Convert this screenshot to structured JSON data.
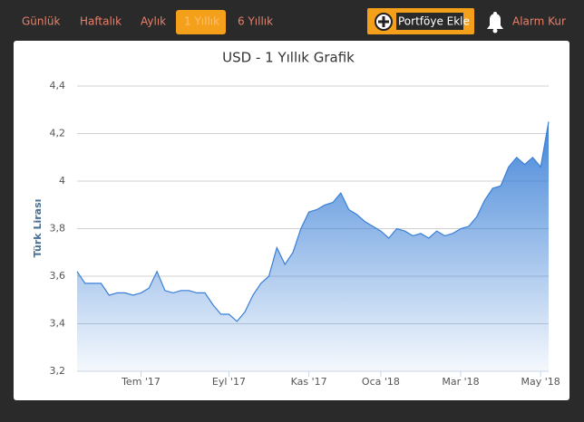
{
  "nav": {
    "tabs": [
      "Günlük",
      "Haftalık",
      "Aylık",
      "1 Yıllık",
      "6 Yıllık"
    ],
    "add_button": "Portföye Ekle",
    "alarm_button": "Alarm Kur"
  },
  "chart_data": {
    "type": "area",
    "title": "USD - 1 Yıllık Grafik",
    "y_label": "Türk Lirası",
    "color": "#3a7fd6",
    "grid": true,
    "categories": [
      null,
      null,
      null,
      null,
      null,
      null,
      null,
      null,
      "Tem '17",
      null,
      null,
      null,
      null,
      null,
      null,
      null,
      null,
      null,
      null,
      "Eyl '17",
      null,
      null,
      null,
      null,
      null,
      null,
      null,
      null,
      null,
      "Kas '17",
      null,
      null,
      null,
      null,
      null,
      null,
      null,
      null,
      "Oca '18",
      null,
      null,
      null,
      null,
      null,
      null,
      null,
      null,
      null,
      "Mar '18",
      null,
      null,
      null,
      null,
      null,
      null,
      null,
      null,
      null,
      "May '18",
      null
    ],
    "values": [
      3.62,
      3.57,
      3.57,
      3.57,
      3.52,
      3.53,
      3.53,
      3.52,
      3.53,
      3.55,
      3.62,
      3.54,
      3.53,
      3.54,
      3.54,
      3.53,
      3.53,
      3.48,
      3.44,
      3.44,
      3.41,
      3.45,
      3.52,
      3.57,
      3.6,
      3.72,
      3.65,
      3.7,
      3.8,
      3.87,
      3.88,
      3.9,
      3.91,
      3.95,
      3.88,
      3.86,
      3.83,
      3.81,
      3.79,
      3.76,
      3.8,
      3.79,
      3.77,
      3.78,
      3.76,
      3.79,
      3.77,
      3.78,
      3.8,
      3.81,
      3.85,
      3.92,
      3.97,
      3.98,
      4.06,
      4.1,
      4.07,
      4.1,
      4.06,
      4.25
    ],
    "ylim": [
      3.2,
      4.4
    ],
    "yticks": [
      {
        "value": 3.2,
        "label": "3,2"
      },
      {
        "value": 3.4,
        "label": "3,4"
      },
      {
        "value": 3.6,
        "label": "3,6"
      },
      {
        "value": 3.8,
        "label": "3,8"
      },
      4,
      {
        "value": 4.2,
        "label": "4,2"
      },
      {
        "value": 4.4,
        "label": "4,4"
      }
    ]
  }
}
